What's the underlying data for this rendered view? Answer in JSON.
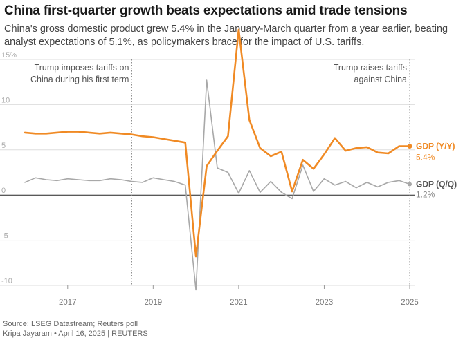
{
  "header": {
    "title": "China first-quarter growth beats expectations amid trade tensions",
    "subtitle": "China's gross domestic product grew 5.4% in the January-March quarter from a year earlier, beating analyst expectations of 5.1%, as policymakers brace for the impact of U.S. tariffs."
  },
  "footer": {
    "source": "Source: LSEG Datastream; Reuters poll",
    "credit": "Kripa Jayaram • April 16, 2025 | REUTERS"
  },
  "chart_data": {
    "type": "line",
    "title": "",
    "xlabel": "",
    "ylabel": "",
    "ylim": [
      -10,
      15
    ],
    "xlim": [
      2016.0,
      2025.0
    ],
    "y_ticks": [
      -10,
      -5,
      0,
      5,
      10,
      15
    ],
    "y_tick_labels": [
      "-10",
      "-5",
      "0",
      "5",
      "10",
      "15%"
    ],
    "x_ticks": [
      2017,
      2019,
      2021,
      2023,
      2025
    ],
    "x_tick_labels": [
      "2017",
      "2019",
      "2021",
      "2023",
      "2025"
    ],
    "grid": true,
    "colors": {
      "yy": "#f08a24",
      "qq": "#a8a8a8",
      "grid": "#dddddd",
      "zero": "#222222",
      "annotation_line": "#888888"
    },
    "annotations": [
      {
        "x": 2018.5,
        "lines": [
          "Trump imposes tariffs on",
          "China during his first term"
        ],
        "align": "right"
      },
      {
        "x": 2025.0,
        "lines": [
          "Trump raises tariffs",
          "against China"
        ],
        "align": "right"
      }
    ],
    "series": [
      {
        "name": "GDP (Y/Y)",
        "last_label": "5.4%",
        "x": [
          2016.0,
          2016.25,
          2016.5,
          2016.75,
          2017.0,
          2017.25,
          2017.5,
          2017.75,
          2018.0,
          2018.25,
          2018.5,
          2018.75,
          2019.0,
          2019.25,
          2019.5,
          2019.75,
          2020.0,
          2020.25,
          2020.5,
          2020.75,
          2021.0,
          2021.25,
          2021.5,
          2021.75,
          2022.0,
          2022.25,
          2022.5,
          2022.75,
          2023.0,
          2023.25,
          2023.5,
          2023.75,
          2024.0,
          2024.25,
          2024.5,
          2024.75,
          2025.0
        ],
        "values": [
          6.9,
          6.8,
          6.8,
          6.9,
          7.0,
          7.0,
          6.9,
          6.8,
          6.9,
          6.8,
          6.7,
          6.5,
          6.4,
          6.2,
          6.0,
          5.8,
          -6.8,
          3.2,
          4.9,
          6.5,
          18.3,
          8.3,
          5.2,
          4.3,
          4.8,
          0.4,
          3.9,
          2.9,
          4.5,
          6.3,
          4.9,
          5.2,
          5.3,
          4.7,
          4.6,
          5.4,
          5.4
        ]
      },
      {
        "name": "GDP (Q/Q)",
        "last_label": "1.2%",
        "x": [
          2016.0,
          2016.25,
          2016.5,
          2016.75,
          2017.0,
          2017.25,
          2017.5,
          2017.75,
          2018.0,
          2018.25,
          2018.5,
          2018.75,
          2019.0,
          2019.25,
          2019.5,
          2019.75,
          2020.0,
          2020.25,
          2020.5,
          2020.75,
          2021.0,
          2021.25,
          2021.5,
          2021.75,
          2022.0,
          2022.25,
          2022.5,
          2022.75,
          2023.0,
          2023.25,
          2023.5,
          2023.75,
          2024.0,
          2024.25,
          2024.5,
          2024.75,
          2025.0
        ],
        "values": [
          1.4,
          1.9,
          1.7,
          1.6,
          1.8,
          1.7,
          1.6,
          1.6,
          1.8,
          1.7,
          1.5,
          1.4,
          1.9,
          1.7,
          1.5,
          1.1,
          -10.5,
          12.7,
          3.0,
          2.5,
          0.2,
          2.7,
          0.3,
          1.5,
          0.3,
          -0.4,
          3.3,
          0.4,
          1.8,
          1.1,
          1.5,
          0.8,
          1.4,
          0.9,
          1.4,
          1.6,
          1.2
        ]
      }
    ]
  }
}
